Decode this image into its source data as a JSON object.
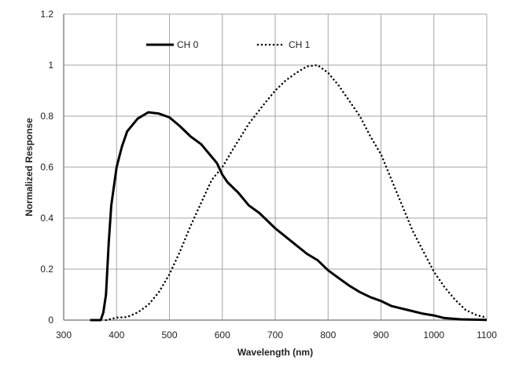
{
  "chart_data": {
    "type": "line",
    "title": "",
    "xlabel": "Wavelength (nm)",
    "ylabel": "Normalized Response",
    "xlim": [
      300,
      1100
    ],
    "ylim": [
      0,
      1.2
    ],
    "xticks": [
      300,
      400,
      500,
      600,
      700,
      800,
      900,
      1000,
      1100
    ],
    "yticks": [
      0,
      0.2,
      0.4,
      0.6,
      0.8,
      1,
      1.2
    ],
    "grid": true,
    "legend": "top-inside",
    "series": [
      {
        "name": "CH 0",
        "style": "solid",
        "color": "#000000",
        "x": [
          350,
          370,
          375,
          380,
          385,
          390,
          400,
          410,
          420,
          440,
          460,
          480,
          500,
          520,
          540,
          560,
          580,
          590,
          600,
          610,
          630,
          650,
          670,
          700,
          730,
          760,
          780,
          800,
          820,
          840,
          860,
          880,
          900,
          920,
          950,
          980,
          1000,
          1020,
          1050,
          1100
        ],
        "y": [
          0,
          0,
          0.03,
          0.1,
          0.3,
          0.45,
          0.6,
          0.68,
          0.74,
          0.79,
          0.815,
          0.81,
          0.795,
          0.76,
          0.72,
          0.69,
          0.64,
          0.615,
          0.57,
          0.54,
          0.5,
          0.45,
          0.42,
          0.36,
          0.31,
          0.26,
          0.235,
          0.195,
          0.165,
          0.135,
          0.11,
          0.09,
          0.075,
          0.055,
          0.04,
          0.025,
          0.018,
          0.008,
          0.003,
          0.001
        ]
      },
      {
        "name": "CH 1",
        "style": "dotted",
        "color": "#000000",
        "x": [
          380,
          400,
          420,
          440,
          460,
          480,
          500,
          520,
          540,
          560,
          580,
          600,
          620,
          650,
          680,
          700,
          720,
          740,
          760,
          780,
          800,
          820,
          840,
          860,
          880,
          900,
          920,
          940,
          960,
          980,
          1000,
          1020,
          1040,
          1060,
          1080,
          1100
        ],
        "y": [
          0,
          0.01,
          0.012,
          0.03,
          0.06,
          0.11,
          0.18,
          0.27,
          0.37,
          0.46,
          0.55,
          0.6,
          0.67,
          0.77,
          0.85,
          0.9,
          0.94,
          0.97,
          0.995,
          1.0,
          0.97,
          0.92,
          0.86,
          0.8,
          0.72,
          0.65,
          0.55,
          0.45,
          0.35,
          0.27,
          0.19,
          0.13,
          0.08,
          0.04,
          0.02,
          0.01
        ]
      }
    ]
  }
}
